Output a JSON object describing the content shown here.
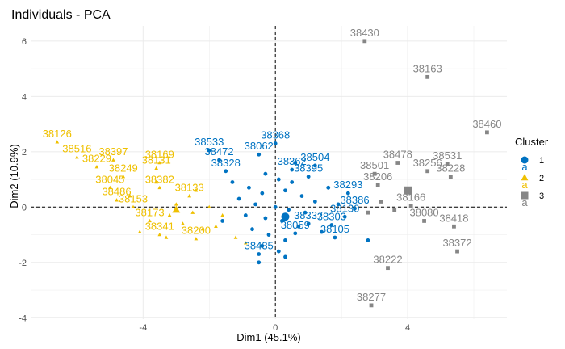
{
  "chart_data": {
    "type": "scatter",
    "title": "Individuals - PCA",
    "xlabel": "Dim1 (45.1%)",
    "ylabel": "Dim2 (10.9%)",
    "xlim": [
      -7.4,
      7.0
    ],
    "ylim": [
      -4.05,
      6.55
    ],
    "xticks": [
      -4,
      0,
      4
    ],
    "yticks": [
      -4,
      -2,
      0,
      2,
      4,
      6
    ],
    "grid": true,
    "reference_lines": {
      "x": 0,
      "y": 0,
      "style": "dashed"
    },
    "legend": {
      "title": "Cluster",
      "placement": "right",
      "glyph_text": "a",
      "entries": [
        {
          "label": "1",
          "color": "#0073C2",
          "shape": "circle"
        },
        {
          "label": "2",
          "color": "#EFC000",
          "shape": "triangle"
        },
        {
          "label": "3",
          "color": "#868686",
          "shape": "square"
        }
      ]
    },
    "centroids": [
      {
        "cluster": "1",
        "x": 0.3,
        "y": -0.35
      },
      {
        "cluster": "2",
        "x": -3.0,
        "y": -0.1
      },
      {
        "cluster": "3",
        "x": 4.0,
        "y": 0.6
      }
    ],
    "series": [
      {
        "name": "1",
        "color": "#0073C2",
        "shape": "circle",
        "points": [
          {
            "label": "38368",
            "x": 0.0,
            "y": 2.3
          },
          {
            "label": "38062",
            "x": -0.5,
            "y": 1.9
          },
          {
            "label": "38533",
            "x": -2.0,
            "y": 2.05
          },
          {
            "label": "38472",
            "x": -1.7,
            "y": 1.7
          },
          {
            "label": "38504",
            "x": 1.2,
            "y": 1.5
          },
          {
            "label": "38362",
            "x": 0.5,
            "y": 1.35
          },
          {
            "label": "38395",
            "x": 1.0,
            "y": 1.1
          },
          {
            "label": "38293",
            "x": 2.2,
            "y": 0.5
          },
          {
            "label": "38386",
            "x": 2.4,
            "y": -0.05
          },
          {
            "label": "38130",
            "x": 2.1,
            "y": -0.35
          },
          {
            "label": "38337",
            "x": 1.0,
            "y": -0.6
          },
          {
            "label": "38303",
            "x": 1.7,
            "y": -0.65
          },
          {
            "label": "38105",
            "x": 1.8,
            "y": -1.1
          },
          {
            "label": "38059",
            "x": 0.6,
            "y": -0.95
          },
          {
            "label": "38435",
            "x": -0.5,
            "y": -1.7
          },
          {
            "label": "38328",
            "x": -1.5,
            "y": 1.3
          },
          {
            "label": "",
            "x": -0.3,
            "y": 1.2
          },
          {
            "label": "",
            "x": 0.1,
            "y": 1.0
          },
          {
            "label": "",
            "x": 0.5,
            "y": 0.9
          },
          {
            "label": "",
            "x": -0.8,
            "y": 0.7
          },
          {
            "label": "",
            "x": -0.4,
            "y": 0.5
          },
          {
            "label": "",
            "x": 0.3,
            "y": 0.6
          },
          {
            "label": "",
            "x": 0.8,
            "y": 0.4
          },
          {
            "label": "",
            "x": 1.2,
            "y": 0.2
          },
          {
            "label": "",
            "x": -1.1,
            "y": 0.3
          },
          {
            "label": "",
            "x": -0.6,
            "y": 0.1
          },
          {
            "label": "",
            "x": 0.0,
            "y": 0.0
          },
          {
            "label": "",
            "x": 0.4,
            "y": -0.1
          },
          {
            "label": "",
            "x": 0.9,
            "y": -0.2
          },
          {
            "label": "",
            "x": -0.9,
            "y": -0.3
          },
          {
            "label": "",
            "x": -0.3,
            "y": -0.4
          },
          {
            "label": "",
            "x": 0.2,
            "y": -0.5
          },
          {
            "label": "",
            "x": 0.7,
            "y": -0.7
          },
          {
            "label": "",
            "x": -0.7,
            "y": -0.8
          },
          {
            "label": "",
            "x": -0.2,
            "y": -1.0
          },
          {
            "label": "",
            "x": 0.3,
            "y": -1.2
          },
          {
            "label": "",
            "x": -0.4,
            "y": -1.4
          },
          {
            "label": "",
            "x": 0.1,
            "y": -1.6
          },
          {
            "label": "",
            "x": 1.4,
            "y": -0.9
          },
          {
            "label": "",
            "x": 1.6,
            "y": 0.7
          },
          {
            "label": "",
            "x": -1.3,
            "y": 0.9
          },
          {
            "label": "",
            "x": 1.9,
            "y": 0.1
          },
          {
            "label": "",
            "x": -0.5,
            "y": -2.0
          },
          {
            "label": "",
            "x": 0.3,
            "y": -1.8
          },
          {
            "label": "",
            "x": 2.8,
            "y": -1.2
          },
          {
            "label": "",
            "x": 0.6,
            "y": 1.6
          },
          {
            "label": "",
            "x": -1.6,
            "y": -0.5
          }
        ]
      },
      {
        "name": "2",
        "color": "#EFC000",
        "shape": "triangle",
        "points": [
          {
            "label": "38126",
            "x": -6.6,
            "y": 2.35
          },
          {
            "label": "38516",
            "x": -6.0,
            "y": 1.8
          },
          {
            "label": "38397",
            "x": -4.9,
            "y": 1.7
          },
          {
            "label": "38229",
            "x": -5.4,
            "y": 1.45
          },
          {
            "label": "38169",
            "x": -3.5,
            "y": 1.6
          },
          {
            "label": "38131",
            "x": -3.6,
            "y": 1.4
          },
          {
            "label": "38249",
            "x": -4.6,
            "y": 1.1
          },
          {
            "label": "38045",
            "x": -5.0,
            "y": 0.7
          },
          {
            "label": "38382",
            "x": -3.5,
            "y": 0.7
          },
          {
            "label": "38486",
            "x": -4.8,
            "y": 0.25
          },
          {
            "label": "38153",
            "x": -4.3,
            "y": 0.0
          },
          {
            "label": "38133",
            "x": -2.6,
            "y": 0.4
          },
          {
            "label": "38173",
            "x": -3.8,
            "y": -0.5
          },
          {
            "label": "38341",
            "x": -3.5,
            "y": -1.0
          },
          {
            "label": "38200",
            "x": -2.4,
            "y": -1.15
          },
          {
            "label": "",
            "x": -3.0,
            "y": 0.1
          },
          {
            "label": "",
            "x": -2.5,
            "y": -0.2
          },
          {
            "label": "",
            "x": -2.0,
            "y": 0.0
          },
          {
            "label": "",
            "x": -3.2,
            "y": -0.3
          },
          {
            "label": "",
            "x": -2.8,
            "y": -0.6
          },
          {
            "label": "",
            "x": -2.2,
            "y": -0.8
          },
          {
            "label": "",
            "x": -1.6,
            "y": -0.3
          },
          {
            "label": "",
            "x": -4.1,
            "y": -0.9
          },
          {
            "label": "",
            "x": -1.2,
            "y": -1.1
          },
          {
            "label": "",
            "x": -3.6,
            "y": 0.9
          },
          {
            "label": "",
            "x": -4.4,
            "y": 0.4
          },
          {
            "label": "",
            "x": -2.4,
            "y": 0.6
          },
          {
            "label": "",
            "x": -1.8,
            "y": -0.7
          },
          {
            "label": "",
            "x": -3.3,
            "y": -1.1
          },
          {
            "label": "",
            "x": -0.9,
            "y": -1.3
          }
        ]
      },
      {
        "name": "3",
        "color": "#868686",
        "shape": "square",
        "points": [
          {
            "label": "38430",
            "x": 2.7,
            "y": 6.0
          },
          {
            "label": "38163",
            "x": 4.6,
            "y": 4.7
          },
          {
            "label": "38460",
            "x": 6.4,
            "y": 2.7
          },
          {
            "label": "38478",
            "x": 3.7,
            "y": 1.6
          },
          {
            "label": "38531",
            "x": 5.2,
            "y": 1.55
          },
          {
            "label": "38256",
            "x": 4.6,
            "y": 1.3
          },
          {
            "label": "38228",
            "x": 5.3,
            "y": 1.1
          },
          {
            "label": "38501",
            "x": 3.0,
            "y": 1.2
          },
          {
            "label": "38206",
            "x": 3.1,
            "y": 0.8
          },
          {
            "label": "38166",
            "x": 4.1,
            "y": 0.05
          },
          {
            "label": "38080",
            "x": 4.5,
            "y": -0.5
          },
          {
            "label": "38418",
            "x": 5.4,
            "y": -0.7
          },
          {
            "label": "38372",
            "x": 5.5,
            "y": -1.6
          },
          {
            "label": "38222",
            "x": 3.4,
            "y": -2.2
          },
          {
            "label": "38277",
            "x": 2.9,
            "y": -3.55
          },
          {
            "label": "",
            "x": 3.6,
            "y": -0.1
          },
          {
            "label": "",
            "x": 3.2,
            "y": 0.2
          },
          {
            "label": "",
            "x": 2.8,
            "y": -0.2
          }
        ]
      }
    ]
  }
}
